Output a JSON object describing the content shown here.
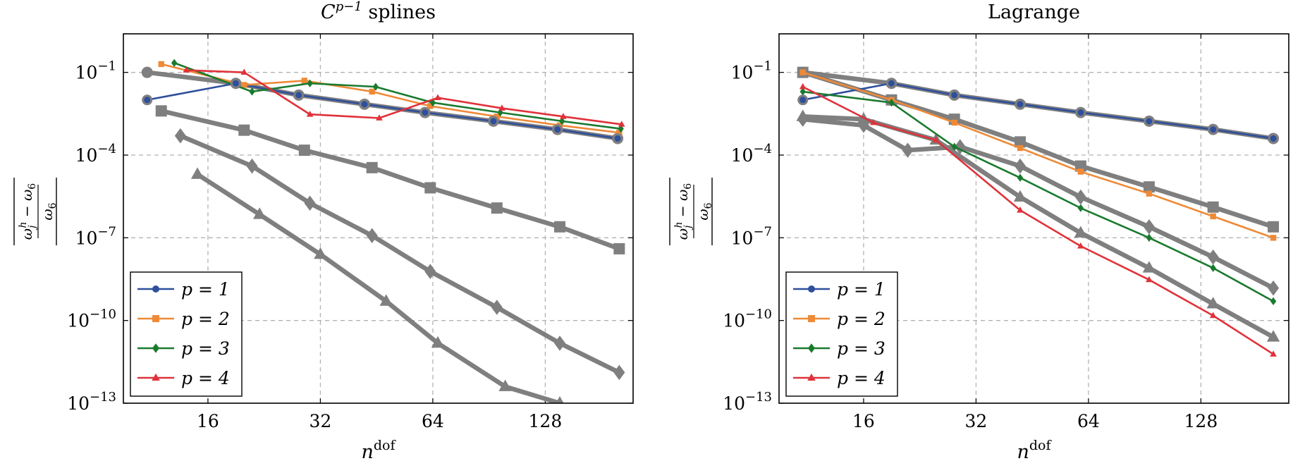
{
  "colors": {
    "p1": "#2e4f9c",
    "p2": "#ee8a37",
    "p3": "#1a7a2e",
    "p4": "#e0323a",
    "ref": "#7f7f7f",
    "grid": "#b3b3b3"
  },
  "ylabel": "|(ω_j^h − ω_6)/ω_6|",
  "chart_data": [
    {
      "type": "line",
      "title": "C^{p−1} splines",
      "xlabel": "n^dof",
      "ylabel": "|(ω_j^h − ω_6)/ω_6|",
      "xscale": "log2",
      "yscale": "log10",
      "xlim": [
        9.5,
        220
      ],
      "ylim": [
        1e-13,
        2.5
      ],
      "xticks": [
        16,
        32,
        64,
        128
      ],
      "xtick_labels": [
        "16",
        "32",
        "64",
        "128"
      ],
      "yticks": [
        0.1,
        0.0001,
        1e-07,
        1e-10,
        1e-13
      ],
      "ytick_labels": [
        {
          "base": "10",
          "exp": "−1"
        },
        {
          "base": "10",
          "exp": "−4"
        },
        {
          "base": "10",
          "exp": "−7"
        },
        {
          "base": "10",
          "exp": "−10"
        },
        {
          "base": "10",
          "exp": "−13"
        }
      ],
      "grid": true,
      "legend_position": "bottom-left",
      "series": [
        {
          "name": "p = 1",
          "color": "p1",
          "marker": "circle",
          "x": [
            11,
            19,
            28,
            42,
            61,
            93,
            138,
            200
          ],
          "y": [
            0.01,
            0.04,
            0.015,
            0.007,
            0.0035,
            0.0017,
            0.00085,
            0.0004
          ]
        },
        {
          "name": "p = 2",
          "color": "p2",
          "marker": "square",
          "x": [
            12,
            20,
            29,
            44,
            63,
            95,
            140,
            202
          ],
          "y": [
            0.2,
            0.035,
            0.05,
            0.02,
            0.006,
            0.0025,
            0.0012,
            0.00065
          ]
        },
        {
          "name": "p = 3",
          "color": "p3",
          "marker": "diamond",
          "x": [
            13,
            21,
            30,
            45,
            64,
            97,
            142,
            204
          ],
          "y": [
            0.22,
            0.02,
            0.04,
            0.03,
            0.008,
            0.0035,
            0.0017,
            0.0009
          ]
        },
        {
          "name": "p = 4",
          "color": "p4",
          "marker": "triangle",
          "x": [
            14,
            20,
            30,
            46,
            66,
            98,
            143,
            205
          ],
          "y": [
            0.12,
            0.1,
            0.003,
            0.0022,
            0.012,
            0.005,
            0.0025,
            0.0013
          ]
        }
      ],
      "reference_series": [
        {
          "marker": "circle",
          "x": [
            11,
            19,
            28,
            42,
            61,
            93,
            138,
            200
          ],
          "y": [
            0.1,
            0.04,
            0.015,
            0.007,
            0.0035,
            0.0017,
            0.00085,
            0.0004
          ]
        },
        {
          "marker": "square",
          "x": [
            12,
            20,
            29,
            44,
            63,
            95,
            140,
            202
          ],
          "y": [
            0.004,
            0.0008,
            0.00015,
            3.5e-05,
            6.5e-06,
            1.2e-06,
            2.5e-07,
            4e-08
          ]
        },
        {
          "marker": "diamond",
          "x": [
            13.5,
            21,
            30,
            44,
            63,
            95,
            140,
            202
          ],
          "y": [
            0.0005,
            4e-05,
            1.8e-06,
            1.2e-07,
            6e-09,
            3e-10,
            1.5e-11,
            1.3e-12
          ]
        },
        {
          "marker": "triangle",
          "x": [
            15,
            22,
            32,
            48,
            66,
            100,
            140
          ],
          "y": [
            2e-05,
            7e-07,
            2.5e-08,
            5e-10,
            1.5e-11,
            4e-13,
            1e-13
          ]
        }
      ]
    },
    {
      "type": "line",
      "title": "Lagrange",
      "xlabel": "n^dof",
      "ylabel": "|(ω_j^h − ω_6)/ω_6|",
      "xscale": "log2",
      "yscale": "log10",
      "xlim": [
        9.5,
        220
      ],
      "ylim": [
        1e-13,
        2.5
      ],
      "xticks": [
        16,
        32,
        64,
        128
      ],
      "xtick_labels": [
        "16",
        "32",
        "64",
        "128"
      ],
      "yticks": [
        0.1,
        0.0001,
        1e-07,
        1e-10,
        1e-13
      ],
      "ytick_labels": [
        {
          "base": "10",
          "exp": "−1"
        },
        {
          "base": "10",
          "exp": "−4"
        },
        {
          "base": "10",
          "exp": "−7"
        },
        {
          "base": "10",
          "exp": "−10"
        },
        {
          "base": "10",
          "exp": "−13"
        }
      ],
      "grid": true,
      "legend_position": "bottom-left",
      "series": [
        {
          "name": "p = 1",
          "color": "p1",
          "marker": "circle",
          "x": [
            11,
            19,
            28,
            42,
            61,
            93,
            138,
            200
          ],
          "y": [
            0.01,
            0.04,
            0.015,
            0.007,
            0.0035,
            0.0017,
            0.00085,
            0.0004
          ]
        },
        {
          "name": "p = 2",
          "color": "p2",
          "marker": "square",
          "x": [
            11,
            19,
            28,
            42,
            61,
            93,
            138,
            200
          ],
          "y": [
            0.1,
            0.01,
            0.0015,
            0.00018,
            2.5e-05,
            4e-06,
            6e-07,
            1e-07
          ]
        },
        {
          "name": "p = 3",
          "color": "p3",
          "marker": "diamond",
          "x": [
            11,
            19,
            28,
            42,
            61,
            93,
            138,
            200
          ],
          "y": [
            0.02,
            0.008,
            0.0002,
            1.5e-05,
            1.2e-06,
            1e-07,
            8e-09,
            5e-10
          ]
        },
        {
          "name": "p = 4",
          "color": "p4",
          "marker": "triangle",
          "x": [
            11,
            17,
            25,
            42,
            61,
            93,
            138,
            200
          ],
          "y": [
            0.03,
            0.0015,
            0.00035,
            1e-06,
            5e-08,
            3e-09,
            1.5e-10,
            6e-12
          ]
        }
      ],
      "reference_series": [
        {
          "marker": "circle",
          "x": [
            11,
            19,
            28,
            42,
            61,
            93,
            138,
            200
          ],
          "y": [
            0.1,
            0.04,
            0.015,
            0.007,
            0.0035,
            0.0017,
            0.00085,
            0.0004
          ]
        },
        {
          "marker": "square",
          "x": [
            11,
            19,
            28,
            42,
            61,
            93,
            138,
            200
          ],
          "y": [
            0.1,
            0.01,
            0.002,
            0.0003,
            4e-05,
            7e-06,
            1.3e-06,
            2.5e-07
          ]
        },
        {
          "marker": "diamond",
          "x": [
            11,
            16,
            21,
            29,
            42,
            61,
            93,
            138,
            200
          ],
          "y": [
            0.002,
            0.0012,
            0.00015,
            0.0002,
            4e-05,
            3e-06,
            2.5e-07,
            2e-08,
            1.5e-09
          ]
        },
        {
          "marker": "triangle",
          "x": [
            11,
            16,
            25,
            42,
            61,
            93,
            138,
            200
          ],
          "y": [
            0.0025,
            0.002,
            0.00035,
            3e-06,
            1.5e-07,
            8e-09,
            4e-10,
            2.5e-11
          ]
        }
      ]
    }
  ]
}
